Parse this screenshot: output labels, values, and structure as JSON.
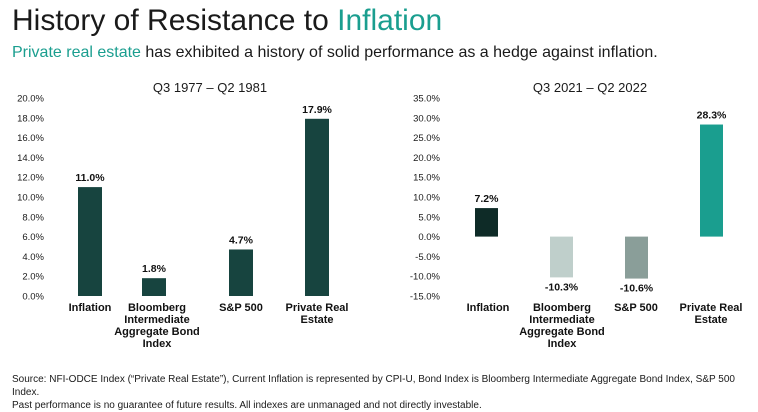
{
  "header": {
    "title_prefix": "History of Resistance to ",
    "title_accent": "Inflation",
    "subtitle_accent": "Private real estate",
    "subtitle_rest": " has exhibited a history of solid performance as a hedge against inflation."
  },
  "colors": {
    "accent": "#1a9e8f",
    "dark_teal": "#17443f"
  },
  "chart_data": [
    {
      "type": "bar",
      "title": "Q3 1977 – Q2 1981",
      "categories": [
        [
          "Inflation"
        ],
        [
          "Bloomberg",
          "Intermediate",
          "Aggregate Bond",
          "Index"
        ],
        [
          "S&P 500"
        ],
        [
          "Private Real",
          "Estate"
        ]
      ],
      "values": [
        11.0,
        1.8,
        4.7,
        17.9
      ],
      "value_labels": [
        "11.0%",
        "1.8%",
        "4.7%",
        "17.9%"
      ],
      "colors": [
        "#17443f",
        "#17443f",
        "#17443f",
        "#17443f"
      ],
      "ylim": [
        0,
        20
      ],
      "yticks": [
        0,
        2,
        4,
        6,
        8,
        10,
        12,
        14,
        16,
        18,
        20
      ],
      "ytick_labels": [
        "0.0%",
        "2.0%",
        "4.0%",
        "6.0%",
        "8.0%",
        "10.0%",
        "12.0%",
        "14.0%",
        "16.0%",
        "18.0%",
        "20.0%"
      ],
      "grid": false
    },
    {
      "type": "bar",
      "title": "Q3 2021 – Q2 2022",
      "categories": [
        [
          "Inflation"
        ],
        [
          "Bloomberg",
          "Intermediate",
          "Aggregate Bond",
          "Index"
        ],
        [
          "S&P 500"
        ],
        [
          "Private Real",
          "Estate"
        ]
      ],
      "values": [
        7.2,
        -10.3,
        -10.6,
        28.3
      ],
      "value_labels": [
        "7.2%",
        "-10.3%",
        "-10.6%",
        "28.3%"
      ],
      "colors": [
        "#0e2b27",
        "#bfcfcb",
        "#8a9e99",
        "#1a9e8f"
      ],
      "ylim": [
        -15,
        35
      ],
      "yticks": [
        -15,
        -10,
        -5,
        0,
        5,
        10,
        15,
        20,
        25,
        30,
        35
      ],
      "ytick_labels": [
        "-15.0%",
        "-10.0%",
        "-5.0%",
        "0.0%",
        "5.0%",
        "10.0%",
        "15.0%",
        "20.0%",
        "25.0%",
        "30.0%",
        "35.0%"
      ],
      "grid": false
    }
  ],
  "footer": {
    "line1": "Source: NFI-ODCE Index (“Private Real Estate”), Current Inflation is represented by CPI-U, Bond Index is Bloomberg Intermediate Aggregate Bond Index, S&P 500 Index.",
    "line2": "Past performance is no guarantee of future results. All indexes are unmanaged and not directly investable."
  }
}
